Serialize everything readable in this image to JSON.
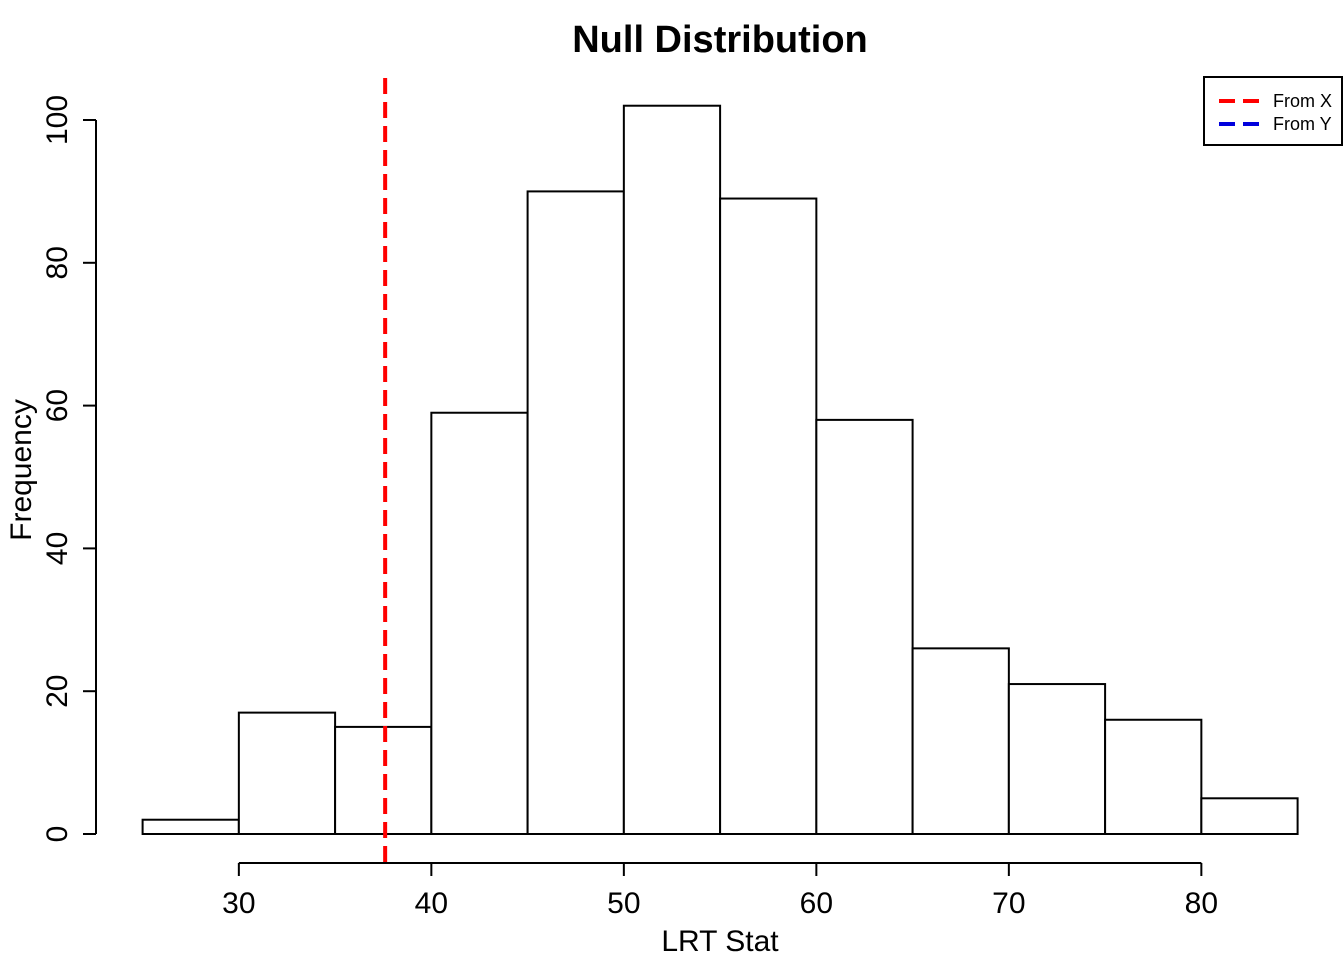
{
  "chart_data": {
    "type": "bar",
    "title": "Null Distribution",
    "xlabel": "LRT Stat",
    "ylabel": "Frequency",
    "bin_edges": [
      25,
      30,
      35,
      40,
      45,
      50,
      55,
      60,
      65,
      70,
      75,
      80,
      85
    ],
    "values": [
      2,
      17,
      15,
      59,
      90,
      102,
      89,
      58,
      26,
      21,
      16,
      5
    ],
    "xlim": [
      25,
      85
    ],
    "ylim": [
      0,
      104
    ],
    "x_ticks": [
      30,
      40,
      50,
      60,
      70,
      80
    ],
    "y_ticks": [
      0,
      20,
      40,
      60,
      80,
      100
    ],
    "grid": false,
    "bar_fill": "#ffffff",
    "bar_stroke": "#000000",
    "vlines": [
      {
        "x": 37.6,
        "color": "#ff0000",
        "style": "dashed"
      }
    ],
    "legend": {
      "position": "top-right",
      "entries": [
        {
          "label": "From X",
          "color": "#ff0000",
          "style": "dashed"
        },
        {
          "label": "From Y",
          "color": "#0000dd",
          "style": "dashed"
        }
      ]
    }
  }
}
